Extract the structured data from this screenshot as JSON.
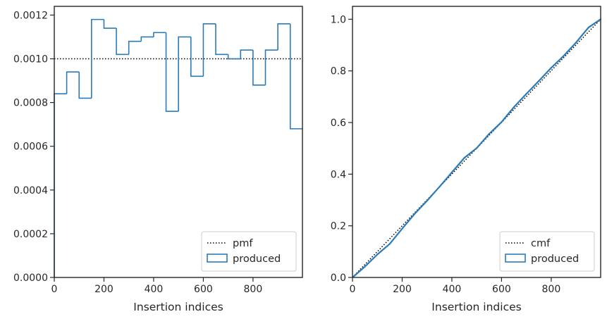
{
  "chart_data": [
    {
      "type": "histogram",
      "xlabel": "Insertion indices",
      "ylabel": "",
      "xlim": [
        0,
        999
      ],
      "ylim": [
        0,
        0.00124
      ],
      "xticks": [
        0,
        200,
        400,
        600,
        800
      ],
      "xtick_labels": [
        "0",
        "200",
        "400",
        "600",
        "800"
      ],
      "yticks": [
        0,
        0.0002,
        0.0004,
        0.0006,
        0.0008,
        0.001,
        0.0012
      ],
      "ytick_labels": [
        "0.0000",
        "0.0002",
        "0.0004",
        "0.0006",
        "0.0008",
        "0.0010",
        "0.0012"
      ],
      "grid": false,
      "legend_position": "lower-right",
      "reference_line": {
        "name": "pmf",
        "style": "dotted",
        "color": "#000000",
        "y": 0.001
      },
      "series": [
        {
          "name": "produced",
          "style": "step",
          "color": "#2b7bb9",
          "bin_edges": [
            0,
            50,
            100,
            150,
            200,
            250,
            300,
            350,
            400,
            450,
            500,
            550,
            600,
            650,
            700,
            750,
            800,
            850,
            900,
            950,
            1000
          ],
          "values": [
            0.00084,
            0.00094,
            0.00082,
            0.00118,
            0.00114,
            0.00102,
            0.00108,
            0.0011,
            0.00112,
            0.00076,
            0.0011,
            0.00092,
            0.00116,
            0.00102,
            0.001,
            0.00104,
            0.00088,
            0.00104,
            0.00116,
            0.00068
          ]
        }
      ]
    },
    {
      "type": "line",
      "xlabel": "Insertion indices",
      "ylabel": "",
      "xlim": [
        0,
        999
      ],
      "ylim": [
        0,
        1.05
      ],
      "xticks": [
        0,
        200,
        400,
        600,
        800
      ],
      "xtick_labels": [
        "0",
        "200",
        "400",
        "600",
        "800"
      ],
      "yticks": [
        0,
        0.2,
        0.4,
        0.6,
        0.8,
        1.0
      ],
      "ytick_labels": [
        "0.0",
        "0.2",
        "0.4",
        "0.6",
        "0.8",
        "1.0"
      ],
      "grid": false,
      "legend_position": "lower-right",
      "series": [
        {
          "name": "cmf",
          "style": "dotted",
          "color": "#000000",
          "x": [
            0,
            999
          ],
          "y": [
            0,
            1.0
          ]
        },
        {
          "name": "produced",
          "style": "solid",
          "color": "#2b7bb9",
          "x": [
            0,
            50,
            100,
            150,
            200,
            250,
            300,
            350,
            400,
            450,
            500,
            550,
            600,
            650,
            700,
            750,
            800,
            850,
            900,
            950,
            999
          ],
          "y": [
            0,
            0.042,
            0.089,
            0.13,
            0.189,
            0.246,
            0.297,
            0.351,
            0.407,
            0.463,
            0.501,
            0.556,
            0.602,
            0.66,
            0.711,
            0.761,
            0.812,
            0.858,
            0.91,
            0.968,
            1.0
          ]
        }
      ]
    }
  ]
}
